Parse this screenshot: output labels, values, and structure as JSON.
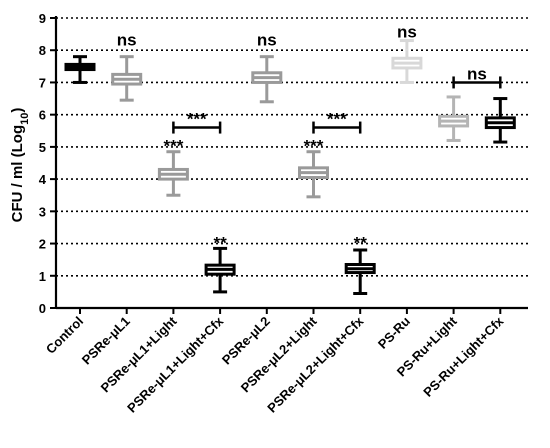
{
  "chart_data": {
    "type": "box",
    "ylabel": "CFU / ml (Log10)",
    "ylabel_main": "CFU / ml (Log",
    "ylabel_sub": "10",
    "ylabel_close": ")",
    "ylim": [
      0,
      9
    ],
    "yticks": [
      0,
      1,
      2,
      3,
      4,
      5,
      6,
      7,
      8,
      9
    ],
    "grid": "dotted horizontal",
    "categories": [
      "Control",
      "PSRe-μL1",
      "PSRe-μL1+Light",
      "PSRe-μL1+Light+Cfx",
      "PSRe-μL2",
      "PSRe-μL2+Light",
      "PSRe-μL2+Light+Cfx",
      "PS-Ru",
      "PS-Ru+Light",
      "PS-Ru+Light+Cfx"
    ],
    "boxes": [
      {
        "min": 7.0,
        "q1": 7.4,
        "median": 7.48,
        "q3": 7.56,
        "max": 7.8,
        "color": "#000000"
      },
      {
        "min": 6.45,
        "q1": 6.95,
        "median": 7.1,
        "q3": 7.25,
        "max": 7.8,
        "color": "#9a9a9a"
      },
      {
        "min": 3.5,
        "q1": 4.0,
        "median": 4.15,
        "q3": 4.3,
        "max": 4.85,
        "color": "#9a9a9a"
      },
      {
        "min": 0.5,
        "q1": 1.05,
        "median": 1.2,
        "q3": 1.33,
        "max": 1.85,
        "color": "#000000"
      },
      {
        "min": 6.4,
        "q1": 7.0,
        "median": 7.15,
        "q3": 7.3,
        "max": 7.8,
        "color": "#9a9a9a"
      },
      {
        "min": 3.45,
        "q1": 4.05,
        "median": 4.2,
        "q3": 4.35,
        "max": 4.85,
        "color": "#9a9a9a"
      },
      {
        "min": 0.45,
        "q1": 1.1,
        "median": 1.22,
        "q3": 1.35,
        "max": 1.8,
        "color": "#000000"
      },
      {
        "min": 7.0,
        "q1": 7.45,
        "median": 7.6,
        "q3": 7.75,
        "max": 8.3,
        "color": "#d8d8d8"
      },
      {
        "min": 5.2,
        "q1": 5.65,
        "median": 5.8,
        "q3": 5.95,
        "max": 6.55,
        "color": "#b4b4b4"
      },
      {
        "min": 5.15,
        "q1": 5.6,
        "median": 5.75,
        "q3": 5.9,
        "max": 6.5,
        "color": "#000000"
      }
    ],
    "annotations": [
      {
        "text": "ns",
        "category": 1,
        "y": 8.15
      },
      {
        "text": "***",
        "category": 2,
        "y": 4.85
      },
      {
        "text": "**",
        "category": 3,
        "y": 1.85
      },
      {
        "text": "ns",
        "category": 4,
        "y": 8.15
      },
      {
        "text": "***",
        "category": 5,
        "y": 4.85
      },
      {
        "text": "**",
        "category": 6,
        "y": 1.85
      },
      {
        "text": "ns",
        "category": 7,
        "y": 8.4
      }
    ],
    "brackets": [
      {
        "from": 2,
        "to": 3,
        "y": 5.6,
        "label": "***"
      },
      {
        "from": 5,
        "to": 6,
        "y": 5.6,
        "label": "***"
      },
      {
        "from": 8,
        "to": 9,
        "y": 7.0,
        "label": "ns"
      }
    ]
  }
}
